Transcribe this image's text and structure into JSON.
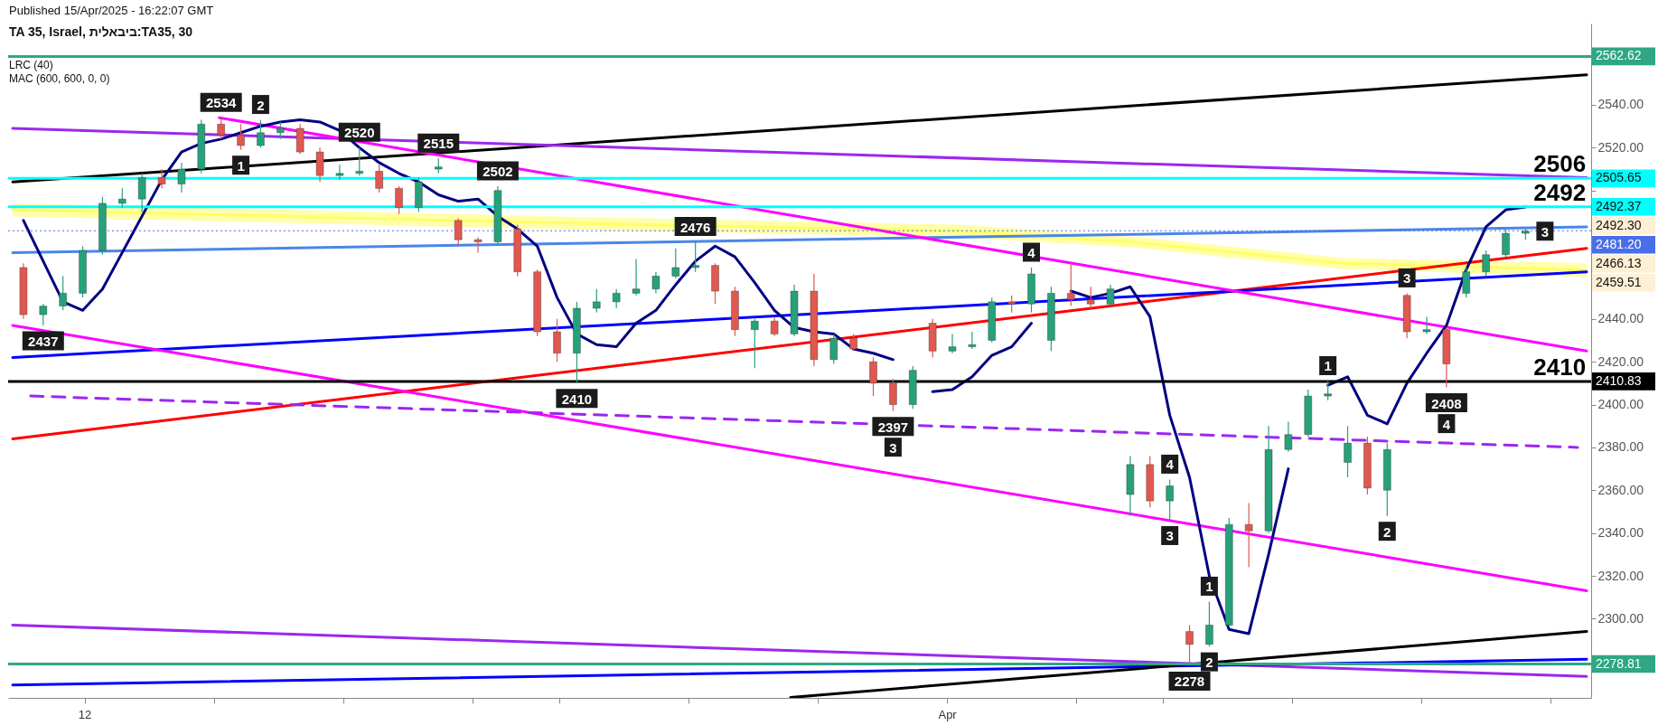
{
  "chart_data": {
    "type": "candlestick",
    "title": "TA 35, Israel, ביבאלית:TA35, 30",
    "xlim": [
      "2025-03-10T08:00",
      "2025-04-15T20:00"
    ],
    "ylim": [
      2263,
      2578
    ],
    "xticks": [
      {
        "value": "2025-03-12",
        "label": "12"
      },
      {
        "value": "2025-03-15",
        "label": null
      },
      {
        "value": "2025-03-18",
        "label": null
      },
      {
        "value": "2025-03-21",
        "label": null
      },
      {
        "value": "2025-03-23",
        "label": null
      },
      {
        "value": "2025-03-26",
        "label": null
      },
      {
        "value": "2025-03-29",
        "label": null
      },
      {
        "value": "2025-04-01",
        "label": "Apr"
      },
      {
        "value": "2025-04-04",
        "label": null
      },
      {
        "value": "2025-04-06",
        "label": null
      },
      {
        "value": "2025-04-09",
        "label": null
      },
      {
        "value": "2025-04-12",
        "label": null
      },
      {
        "value": "2025-04-15",
        "label": null
      }
    ],
    "yticks": [
      {
        "value": 2300,
        "label": "2300.00"
      },
      {
        "value": 2320,
        "label": "2320.00"
      },
      {
        "value": 2340,
        "label": "2340.00"
      },
      {
        "value": 2360,
        "label": "2360.00"
      },
      {
        "value": 2380,
        "label": "2380.00"
      },
      {
        "value": 2400,
        "label": "2400.00"
      },
      {
        "value": 2420,
        "label": "2420.00"
      },
      {
        "value": 2440,
        "label": "2440.00"
      },
      {
        "value": 2460,
        "label": null
      },
      {
        "value": 2480,
        "label": null
      },
      {
        "value": 2500,
        "label": null
      },
      {
        "value": 2520,
        "label": "2520.00"
      },
      {
        "value": 2540,
        "label": "2540.00"
      }
    ],
    "x": [
      "2025-03-10T14:00",
      "2025-03-11T01:00",
      "2025-03-11T12:00",
      "2025-03-11T23:00",
      "2025-03-12T10:00",
      "2025-03-12T21:00",
      "2025-03-13T08:00",
      "2025-03-13T19:00",
      "2025-03-14T06:00",
      "2025-03-14T17:00",
      "2025-03-15T04:00",
      "2025-03-15T15:00",
      "2025-03-16T02:00",
      "2025-03-16T13:00",
      "2025-03-17T00:00",
      "2025-03-17T11:00",
      "2025-03-17T22:00",
      "2025-03-18T09:00",
      "2025-03-18T20:00",
      "2025-03-19T07:00",
      "2025-03-19T18:00",
      "2025-03-20T05:00",
      "2025-03-20T16:00",
      "2025-03-21T03:00",
      "2025-03-21T14:00",
      "2025-03-22T01:00",
      "2025-03-22T12:00",
      "2025-03-22T23:00",
      "2025-03-23T10:00",
      "2025-03-23T21:00",
      "2025-03-24T08:00",
      "2025-03-24T19:00",
      "2025-03-25T06:00",
      "2025-03-25T17:00",
      "2025-03-26T04:00",
      "2025-03-26T15:00",
      "2025-03-27T02:00",
      "2025-03-27T13:00",
      "2025-03-28T00:00",
      "2025-03-28T11:00",
      "2025-03-28T22:00",
      "2025-03-29T09:00",
      "2025-03-29T20:00",
      "2025-03-30T07:00",
      "2025-03-30T18:00",
      "2025-03-31T05:00",
      "2025-03-31T16:00",
      "2025-04-01T03:00",
      "2025-04-01T14:00",
      "2025-04-02T01:00",
      "2025-04-02T12:00",
      "2025-04-02T23:00",
      "2025-04-03T10:00",
      "2025-04-03T21:00",
      "2025-04-04T08:00",
      "2025-04-04T19:00",
      "2025-04-05T06:00",
      "2025-04-05T17:00",
      "2025-04-06T04:00",
      "2025-04-06T15:00",
      "2025-04-07T02:00",
      "2025-04-07T13:00",
      "2025-04-08T00:00",
      "2025-04-08T11:00",
      "2025-04-08T22:00",
      "2025-04-09T09:00",
      "2025-04-09T20:00",
      "2025-04-10T07:00",
      "2025-04-10T18:00",
      "2025-04-11T05:00",
      "2025-04-11T16:00",
      "2025-04-12T03:00",
      "2025-04-12T14:00",
      "2025-04-13T01:00",
      "2025-04-13T12:00",
      "2025-04-13T23:00",
      "2025-04-14T10:00"
    ],
    "ohlc": [
      [
        2464,
        2466,
        2440,
        2442
      ],
      [
        2442,
        2447,
        2437,
        2446
      ],
      [
        2446,
        2460,
        2444,
        2452
      ],
      [
        2452,
        2474,
        2450,
        2472
      ],
      [
        2472,
        2497,
        2470,
        2494
      ],
      [
        2494,
        2501,
        2492,
        2496
      ],
      [
        2496,
        2508,
        2490,
        2506
      ],
      [
        2506,
        2510,
        2501,
        2503
      ],
      [
        2503,
        2513,
        2499,
        2510
      ],
      [
        2510,
        2533,
        2508,
        2531
      ],
      [
        2531,
        2534,
        2524,
        2526
      ],
      [
        2526,
        2531,
        2519,
        2521
      ],
      [
        2521,
        2533,
        2520,
        2527
      ],
      [
        2527,
        2532,
        2524,
        2529
      ],
      [
        2529,
        2531,
        2517,
        2518
      ],
      [
        2518,
        2520,
        2504,
        2507
      ],
      [
        2507,
        2512,
        2505,
        2508
      ],
      [
        2508,
        2520,
        2507,
        2509
      ],
      [
        2509,
        2512,
        2499,
        2501
      ],
      [
        2501,
        2502,
        2489,
        2492
      ],
      [
        2492,
        2506,
        2490,
        2504
      ],
      [
        2510,
        2515,
        2508,
        2511
      ],
      [
        2486,
        2487,
        2474,
        2477
      ],
      [
        2477,
        2478,
        2471,
        2476
      ],
      [
        2476,
        2502,
        2475,
        2500
      ],
      [
        2482,
        2484,
        2460,
        2462
      ],
      [
        2462,
        2463,
        2432,
        2434
      ],
      [
        2434,
        2440,
        2420,
        2424
      ],
      [
        2424,
        2448,
        2410,
        2445
      ],
      [
        2445,
        2454,
        2443,
        2448
      ],
      [
        2448,
        2454,
        2445,
        2452
      ],
      [
        2452,
        2468,
        2451,
        2454
      ],
      [
        2454,
        2462,
        2452,
        2460
      ],
      [
        2460,
        2473,
        2459,
        2464
      ],
      [
        2464,
        2476,
        2462,
        2465
      ],
      [
        2465,
        2466,
        2447,
        2453
      ],
      [
        2453,
        2455,
        2432,
        2435
      ],
      [
        2435,
        2440,
        2417,
        2439
      ],
      [
        2439,
        2441,
        2432,
        2433
      ],
      [
        2433,
        2456,
        2432,
        2453
      ],
      [
        2453,
        2461,
        2418,
        2421
      ],
      [
        2421,
        2433,
        2419,
        2431
      ],
      [
        2431,
        2433,
        2425,
        2426
      ],
      [
        2420,
        2422,
        2404,
        2410
      ],
      [
        2410,
        2412,
        2397,
        2400
      ],
      [
        2400,
        2418,
        2398,
        2416
      ],
      [
        2438,
        2440,
        2422,
        2425
      ],
      [
        2425,
        2433,
        2424,
        2427
      ],
      [
        2427,
        2434,
        2426,
        2428
      ],
      [
        2430,
        2450,
        2429,
        2448
      ],
      [
        2448,
        2451,
        2443,
        2447
      ],
      [
        2447,
        2464,
        2443,
        2461
      ],
      [
        2430,
        2455,
        2425,
        2452
      ],
      [
        2452,
        2466,
        2446,
        2449
      ],
      [
        2449,
        2455,
        2445,
        2447
      ],
      [
        2447,
        2456,
        2446,
        2454
      ],
      [
        2358,
        2376,
        2348,
        2372
      ],
      [
        2372,
        2376,
        2352,
        2355
      ],
      [
        2355,
        2365,
        2346,
        2362
      ],
      [
        2294,
        2297,
        2278,
        2288
      ],
      [
        2288,
        2308,
        2287,
        2297
      ],
      [
        2297,
        2347,
        2296,
        2344
      ],
      [
        2344,
        2354,
        2324,
        2341
      ],
      [
        2341,
        2390,
        2340,
        2379
      ],
      [
        2379,
        2392,
        2378,
        2386
      ],
      [
        2386,
        2407,
        2385,
        2404
      ],
      [
        2404,
        2411,
        2402,
        2405
      ],
      [
        2373,
        2390,
        2366,
        2382
      ],
      [
        2382,
        2385,
        2358,
        2361
      ],
      [
        2360,
        2382,
        2348,
        2379
      ],
      [
        2451,
        2452,
        2431,
        2434
      ],
      [
        2434,
        2441,
        2433,
        2435
      ],
      [
        2435,
        2436,
        2408,
        2419
      ],
      [
        2452,
        2464,
        2450,
        2462
      ],
      [
        2462,
        2472,
        2460,
        2470
      ],
      [
        2470,
        2482,
        2469,
        2480
      ],
      [
        2480,
        2482,
        2477,
        2481
      ]
    ],
    "series": [
      {
        "type": "line",
        "color": "#ffff66",
        "x": [
          "2025-03-10T08:00",
          "2025-03-22T19:00",
          "2025-04-01T08:00",
          "2025-04-05T06:00",
          "2025-04-10T05:00",
          "2025-04-15T20:00"
        ],
        "values": [
          2491,
          2485,
          2481,
          2476,
          2466,
          2462.8
        ],
        "lower": [
          2488,
          2482,
          2478,
          2473.5,
          2463.3,
          2459.51
        ],
        "upper": [
          2494,
          2488,
          2484,
          2478.6,
          2468.4,
          2466.13
        ]
      },
      {
        "type": "line",
        "color": "#000000",
        "x": [
          "2025-03-10T08:00",
          "2025-04-15T20:00"
        ],
        "values": [
          2504,
          2554
        ]
      },
      {
        "type": "line",
        "color": "#9c27f0",
        "x": [
          "2025-03-10T08:00",
          "2025-04-15T20:00"
        ],
        "values": [
          2529,
          2506
        ]
      },
      {
        "type": "line",
        "color": "#4a86e8",
        "x": [
          "2025-03-10T08:00",
          "2025-04-15T20:00"
        ],
        "values": [
          2471,
          2483
        ]
      },
      {
        "type": "line",
        "color": "#ff0000",
        "x": [
          "2025-03-10T08:00",
          "2025-04-15T20:00"
        ],
        "values": [
          2384,
          2473
        ]
      },
      {
        "type": "line",
        "color": "#0000ff",
        "x": [
          "2025-03-10T08:00",
          "2025-04-15T20:00"
        ],
        "values": [
          2422,
          2462
        ]
      },
      {
        "type": "line",
        "color": "#ff00ff",
        "x": [
          "2025-03-15T03:00",
          "2025-04-15T20:00"
        ],
        "values": [
          2534,
          2425
        ]
      },
      {
        "type": "line",
        "color": "#ff00ff",
        "x": [
          "2025-03-10T08:00",
          "2025-04-15T20:00"
        ],
        "values": [
          2437,
          2313
        ]
      },
      {
        "type": "line",
        "color": "#9c27f0",
        "line_style": "dashed",
        "x": [
          "2025-03-10T18:00",
          "2025-04-15T15:00"
        ],
        "values": [
          2404,
          2380
        ]
      },
      {
        "type": "line",
        "color": "#9c27f0",
        "x": [
          "2025-03-10T08:00",
          "2025-04-15T20:00"
        ],
        "values": [
          2297,
          2273
        ]
      },
      {
        "type": "line",
        "color": "#0000ff",
        "x": [
          "2025-03-10T08:00",
          "2025-04-15T20:00"
        ],
        "values": [
          2269,
          2281
        ]
      },
      {
        "type": "line",
        "color": "#000000",
        "x": [
          "2025-03-28T09:00",
          "2025-04-15T20:00"
        ],
        "values": [
          2263.2,
          2294
        ]
      },
      {
        "type": "line",
        "color": "#000080",
        "values": [
          2486,
          2467,
          2448,
          2444,
          2454,
          2471,
          2488,
          2505,
          2518,
          2522,
          2524,
          2527,
          2530,
          2532,
          2533,
          2532,
          2528,
          2520,
          2513,
          2508,
          2504,
          2498,
          2495,
          2496,
          2488,
          2482,
          2474,
          2450,
          2433,
          2428,
          2427,
          2438,
          2444,
          2456,
          2467,
          2474,
          2469,
          2457,
          2444,
          2436,
          2434,
          2433,
          2426,
          2424,
          2421,
          null,
          2406,
          2407,
          2413,
          2423,
          2427,
          2438,
          null,
          2453,
          2450,
          2452,
          2455,
          2441,
          2395,
          2366,
          2320,
          2295,
          2293,
          2330,
          2370,
          null,
          2409,
          2413,
          2395,
          2391,
          2410,
          2424,
          2437,
          2463,
          2483,
          2491,
          2492.3
        ]
      }
    ],
    "ref_lines": [
      {
        "axis": "y",
        "value": 2562.62,
        "label": "2562.62",
        "color": "#2fa684"
      },
      {
        "axis": "y",
        "value": 2505.65,
        "label": "2505.65",
        "color": "#00ffff"
      },
      {
        "axis": "y",
        "value": 2492.37,
        "label": "2492.37",
        "color": "#00ffff"
      },
      {
        "axis": "y",
        "value": 2481.2,
        "label": "2481.20",
        "color": "#4a6ee8",
        "line_style": "dotted"
      },
      {
        "axis": "y",
        "value": 2410.83,
        "label": "2410.83",
        "color": "#000000"
      },
      {
        "axis": "y",
        "value": 2278.81,
        "label": "2278.81",
        "color": "#2fa684"
      }
    ],
    "annotations": [
      "Published 15/Apr/2025 - 16:22:07 GMT",
      "LRC (40)",
      "MAC (600, 600, 0, 0)",
      {
        "text": "2534",
        "x": "2025-03-15T04:00",
        "y": 2534
      },
      {
        "text": "2",
        "x": "2025-03-16T02:00",
        "y": 2533
      },
      {
        "text": "1",
        "x": "2025-03-15T15:00",
        "y": 2519
      },
      {
        "text": "2520",
        "x": "2025-03-18T09:00",
        "y": 2520
      },
      {
        "text": "2515",
        "x": "2025-03-20T05:00",
        "y": 2515
      },
      {
        "text": "2502",
        "x": "2025-03-21T14:00",
        "y": 2502
      },
      {
        "text": "2437",
        "x": "2025-03-11T01:00",
        "y": 2437
      },
      {
        "text": "2410",
        "x": "2025-03-23T10:00",
        "y": 2410
      },
      {
        "text": "2476",
        "x": "2025-03-26T04:00",
        "y": 2476
      },
      {
        "text": "2397",
        "x": "2025-03-30T18:00",
        "y": 2397
      },
      {
        "text": "3",
        "x": "2025-03-30T18:00",
        "y": 2397
      },
      {
        "text": "4",
        "x": "2025-04-02T23:00",
        "y": 2464
      },
      {
        "text": "4",
        "x": "2025-04-06T04:00",
        "y": 2365
      },
      {
        "text": "3",
        "x": "2025-04-06T04:00",
        "y": 2346
      },
      {
        "text": "1",
        "x": "2025-04-07T02:00",
        "y": 2308
      },
      {
        "text": "2",
        "x": "2025-04-07T02:00",
        "y": 2287
      },
      {
        "text": "2278",
        "x": "2025-04-06T15:00",
        "y": 2278
      },
      {
        "text": "1",
        "x": "2025-04-09T20:00",
        "y": 2411
      },
      {
        "text": "2",
        "x": "2025-04-11T05:00",
        "y": 2348
      },
      {
        "text": "3",
        "x": "2025-04-11T16:00",
        "y": 2452
      },
      {
        "text": "2408",
        "x": "2025-04-12T14:00",
        "y": 2408
      },
      {
        "text": "4",
        "x": "2025-04-12T14:00",
        "y": 2408
      },
      {
        "text": "3",
        "x": "2025-04-14T10:00",
        "y": 2481
      },
      {
        "text": "2506",
        "x": "2025-04-15T05:00",
        "y": 2505.65
      },
      {
        "text": "2492",
        "x": "2025-04-15T05:00",
        "y": 2492.37
      },
      {
        "text": "2410",
        "x": "2025-04-15T05:00",
        "y": 2410.83
      },
      {
        "text": "2492.30",
        "x": "2025-04-15T20:00",
        "y": 2492.3
      },
      {
        "text": "2466.13",
        "x": "2025-04-15T20:00",
        "y": 2466.13
      },
      {
        "text": "2459.51",
        "x": "2025-04-15T20:00",
        "y": 2459.51
      }
    ]
  }
}
